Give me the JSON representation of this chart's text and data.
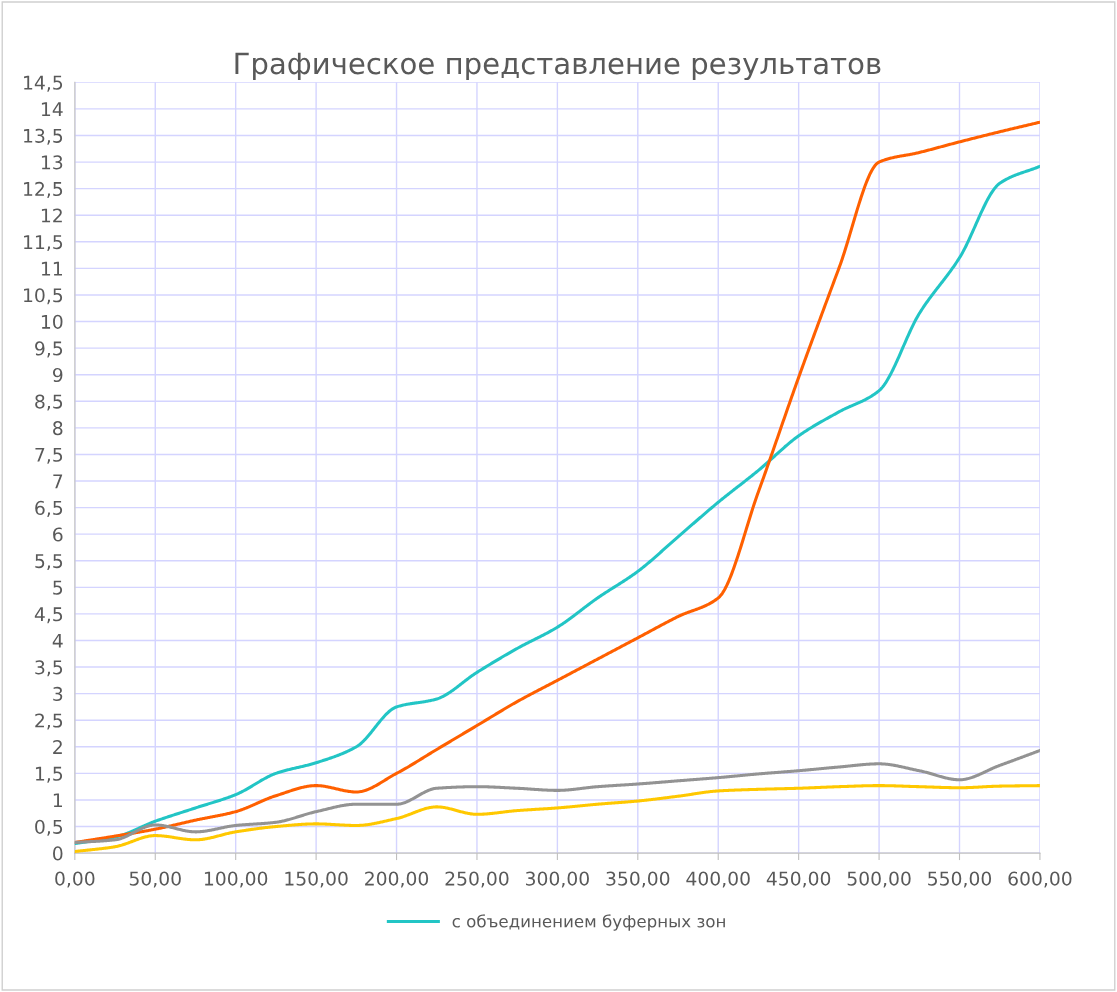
{
  "chart_data": {
    "type": "line",
    "title": "Графическое представление результатов",
    "x": [
      0,
      25,
      50,
      75,
      100,
      125,
      150,
      175,
      200,
      225,
      250,
      275,
      300,
      325,
      350,
      375,
      400,
      425,
      450,
      475,
      500,
      525,
      550,
      575,
      600
    ],
    "series": [
      {
        "name": "с объединением буферных зон",
        "color": "#22c5c5",
        "values": [
          0.18,
          0.3,
          0.6,
          0.85,
          1.1,
          1.5,
          1.7,
          2.0,
          2.75,
          2.9,
          3.4,
          3.85,
          4.25,
          4.8,
          5.3,
          5.95,
          6.6,
          7.2,
          7.85,
          8.3,
          8.7,
          10.15,
          11.2,
          12.6,
          12.92
        ]
      },
      {
        "color": "#ff6000",
        "values": [
          0.2,
          0.32,
          0.45,
          0.62,
          0.78,
          1.08,
          1.27,
          1.15,
          1.5,
          1.95,
          2.4,
          2.85,
          3.25,
          3.65,
          4.05,
          4.45,
          4.8,
          6.8,
          8.95,
          11.0,
          13.0,
          13.18,
          13.38,
          13.57,
          13.75
        ]
      },
      {
        "color": "#939393",
        "values": [
          0.2,
          0.25,
          0.53,
          0.4,
          0.52,
          0.58,
          0.78,
          0.92,
          0.92,
          1.22,
          1.25,
          1.22,
          1.18,
          1.25,
          1.3,
          1.36,
          1.42,
          1.49,
          1.55,
          1.62,
          1.68,
          1.55,
          1.38,
          1.65,
          1.93
        ]
      },
      {
        "color": "#ffc800",
        "values": [
          0.03,
          0.12,
          0.33,
          0.25,
          0.4,
          0.5,
          0.55,
          0.52,
          0.65,
          0.87,
          0.73,
          0.8,
          0.85,
          0.92,
          0.98,
          1.07,
          1.17,
          1.2,
          1.22,
          1.25,
          1.27,
          1.25,
          1.23,
          1.26,
          1.27
        ]
      }
    ],
    "xlim": [
      0,
      600
    ],
    "xticks": [
      {
        "value": 0,
        "label": "0,00"
      },
      {
        "value": 50,
        "label": "50,00"
      },
      {
        "value": 100,
        "label": "100,00"
      },
      {
        "value": 150,
        "label": "150,00"
      },
      {
        "value": 200,
        "label": "200,00"
      },
      {
        "value": 250,
        "label": "250,00"
      },
      {
        "value": 300,
        "label": "300,00"
      },
      {
        "value": 350,
        "label": "350,00"
      },
      {
        "value": 400,
        "label": "400,00"
      },
      {
        "value": 450,
        "label": "450,00"
      },
      {
        "value": 500,
        "label": "500,00"
      },
      {
        "value": 550,
        "label": "550,00"
      },
      {
        "value": 600,
        "label": "600,00"
      }
    ],
    "ylim": [
      0,
      14.5
    ],
    "yticks": [
      0,
      {
        "value": 0.5,
        "label": "0,5"
      },
      1,
      {
        "value": 1.5,
        "label": "1,5"
      },
      2,
      {
        "value": 2.5,
        "label": "2,5"
      },
      3,
      {
        "value": 3.5,
        "label": "3,5"
      },
      4,
      {
        "value": 4.5,
        "label": "4,5"
      },
      5,
      {
        "value": 5.5,
        "label": "5,5"
      },
      6,
      {
        "value": 6.5,
        "label": "6,5"
      },
      7,
      {
        "value": 7.5,
        "label": "7,5"
      },
      8,
      {
        "value": 8.5,
        "label": "8,5"
      },
      9,
      {
        "value": 9.5,
        "label": "9,5"
      },
      10,
      {
        "value": 10.5,
        "label": "10,5"
      },
      11,
      {
        "value": 11.5,
        "label": "11,5"
      },
      12,
      {
        "value": 12.5,
        "label": "12,5"
      },
      13,
      {
        "value": 13.5,
        "label": "13,5"
      },
      14,
      {
        "value": 14.5,
        "label": "14,5"
      }
    ],
    "grid": true,
    "legend": "bottom",
    "marker": "none",
    "line_style": "solid"
  }
}
